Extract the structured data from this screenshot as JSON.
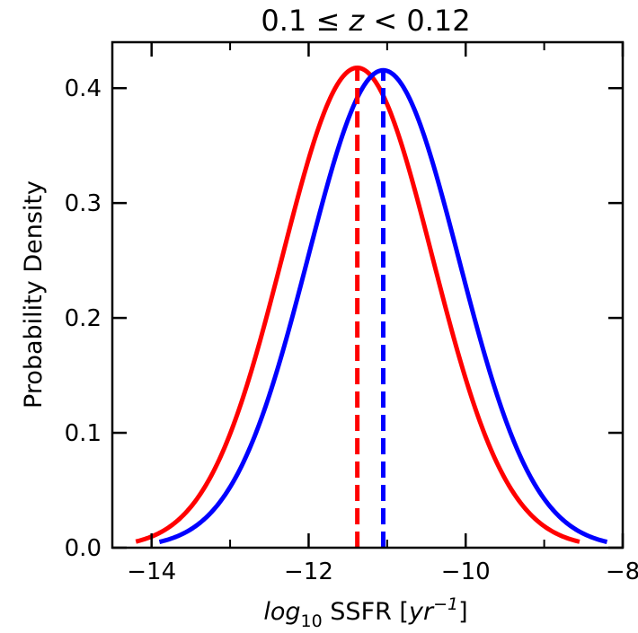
{
  "chart_data": {
    "type": "line",
    "title": "0.1 ≤ z < 0.12",
    "title_parts": {
      "left": "0.1 ≤ ",
      "var": "z",
      "right": " < 0.12"
    },
    "xlabel": "log10 SSFR [yr−1]",
    "xlabel_parts": {
      "log": "log",
      "sub": "10",
      "mid": " SSFR [",
      "yr": "yr",
      "sup": "−1",
      "end": "]"
    },
    "ylabel": "Probability Density",
    "xlim": [
      -14.5,
      -8.0
    ],
    "ylim": [
      0.0,
      0.44
    ],
    "x_ticks": [
      -14,
      -12,
      -10,
      -8
    ],
    "x_tick_labels": [
      "−14",
      "−12",
      "−10",
      "−8"
    ],
    "x_minor_ticks": [
      -13,
      -11,
      -9
    ],
    "y_ticks": [
      0.0,
      0.1,
      0.2,
      0.3,
      0.4
    ],
    "y_tick_labels": [
      "0.0",
      "0.1",
      "0.2",
      "0.3",
      "0.4"
    ],
    "grid": false,
    "series": [
      {
        "name": "red",
        "color": "#ff0000",
        "kind": "gaussian",
        "mean": -11.38,
        "sigma": 0.955,
        "x_range": [
          -14.2,
          -8.55
        ]
      },
      {
        "name": "blue",
        "color": "#0000ff",
        "kind": "gaussian",
        "mean": -11.05,
        "sigma": 0.96,
        "x_range": [
          -13.9,
          -8.2
        ]
      }
    ],
    "vlines": [
      {
        "name": "red-mean",
        "x": -11.38,
        "color": "#ff0000",
        "style": "dashed"
      },
      {
        "name": "blue-mean",
        "x": -11.05,
        "color": "#0000ff",
        "style": "dashed"
      }
    ]
  }
}
